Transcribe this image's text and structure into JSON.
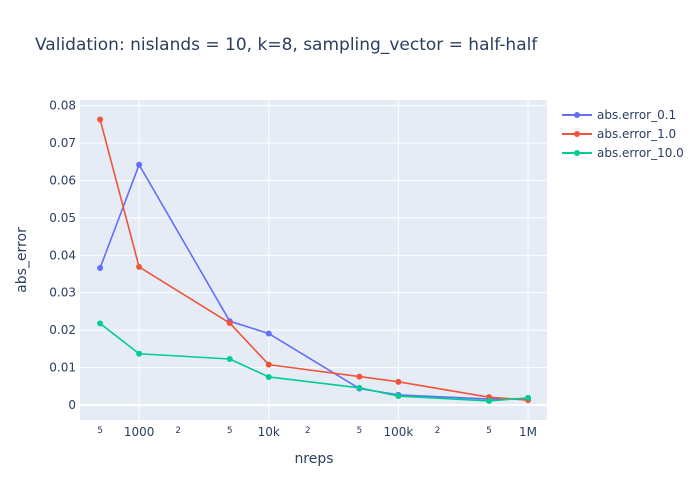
{
  "chart_data": {
    "type": "line",
    "title": "Validation: nislands = 10, k=8, sampling_vector = half-half",
    "xlabel": "nreps",
    "ylabel": "abs_error",
    "x_scale": "log",
    "xlim": [
      350,
      1400000
    ],
    "ylim": [
      -0.004,
      0.0815
    ],
    "grid": true,
    "legend_position": "top-right outside",
    "x_ticks_major": [
      {
        "value": 1000,
        "label": "1000"
      },
      {
        "value": 10000,
        "label": "10k"
      },
      {
        "value": 100000,
        "label": "100k"
      },
      {
        "value": 1000000,
        "label": "1M"
      }
    ],
    "x_ticks_minor": [
      {
        "value": 500,
        "label": "5"
      },
      {
        "value": 2000,
        "label": "2"
      },
      {
        "value": 5000,
        "label": "5"
      },
      {
        "value": 20000,
        "label": "2"
      },
      {
        "value": 50000,
        "label": "5"
      },
      {
        "value": 200000,
        "label": "2"
      },
      {
        "value": 500000,
        "label": "5"
      }
    ],
    "y_ticks": [
      {
        "value": 0,
        "label": "0"
      },
      {
        "value": 0.01,
        "label": "0.01"
      },
      {
        "value": 0.02,
        "label": "0.02"
      },
      {
        "value": 0.03,
        "label": "0.03"
      },
      {
        "value": 0.04,
        "label": "0.04"
      },
      {
        "value": 0.05,
        "label": "0.05"
      },
      {
        "value": 0.06,
        "label": "0.06"
      },
      {
        "value": 0.07,
        "label": "0.07"
      },
      {
        "value": 0.08,
        "label": "0.08"
      }
    ],
    "x": [
      500,
      1000,
      5000,
      10000,
      50000,
      100000,
      500000,
      1000000
    ],
    "series": [
      {
        "name": "abs.error_0.1",
        "color": "#636efa",
        "values": [
          0.0366,
          0.0642,
          0.0224,
          0.0191,
          0.0044,
          0.0027,
          0.0016,
          0.0017
        ]
      },
      {
        "name": "abs.error_1.0",
        "color": "#ef553b",
        "values": [
          0.0763,
          0.0369,
          0.0219,
          0.0108,
          0.0076,
          0.0062,
          0.0021,
          0.0013
        ]
      },
      {
        "name": "abs.error_10.0",
        "color": "#00cc96",
        "values": [
          0.0218,
          0.0137,
          0.0123,
          0.0075,
          0.0046,
          0.0024,
          0.0011,
          0.0019
        ]
      }
    ]
  }
}
